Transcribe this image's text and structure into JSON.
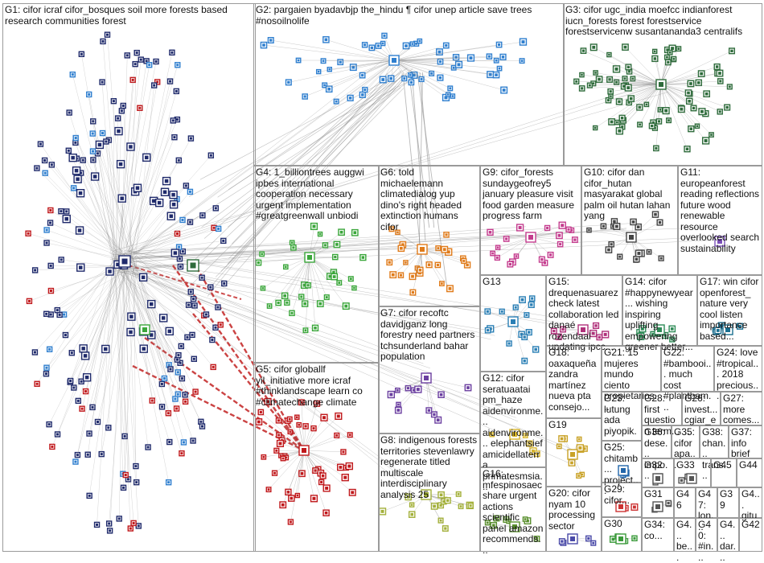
{
  "groups": [
    {
      "id": "G1",
      "text": "G1: cifor icraf cifor_bosques soil more forests based research communities forest",
      "color": "#1f2a6b"
    },
    {
      "id": "G2",
      "text": "G2: pargaien byadavbjp the_hindu ¶ cifor unep article save trees #nosoilnolife",
      "color": "#2f7fcf"
    },
    {
      "id": "G3",
      "text": "G3: cifor ugc_india moefcc indianforest iucn_forests forest forestservice forestservicenw susantananda3 centralifs",
      "color": "#2e6b3b"
    },
    {
      "id": "G4",
      "text": "G4: 1_billiontrees auggwi ipbes international cooperation necessary urgent implementation #greatgreenwall unbiodi",
      "color": "#3aa63a"
    },
    {
      "id": "G5",
      "text": "G5: cifor globallf yil_initiative more icraf #thinklandscape learn co #climatechange climate",
      "color": "#c0181b"
    },
    {
      "id": "G6",
      "text": "G6: told michaelemann climatedialog yup dino's right headed extinction humans cifor",
      "color": "#e07b1a"
    },
    {
      "id": "G7",
      "text": "G7: cifor recoftc davidjganz long forestry need partners tchsunderland bahar population",
      "color": "#6b3fa0"
    },
    {
      "id": "G8",
      "text": "G8: indigenous forests territories stevenlawry regenerate titled multiscale interdisciplinary analysis 25",
      "color": "#a3b03a"
    },
    {
      "id": "G9",
      "text": "G9: cifor_forests sundaygeofrey5 january pleasure visit food garden measure progress farm",
      "color": "#c43c8e"
    },
    {
      "id": "G10",
      "text": "G10: cifor dan cifor_hutan masyarakat global palm oil hutan lahan yang",
      "color": "#444444"
    },
    {
      "id": "G11",
      "text": "G11: europeanforest reading reflections future wood renewable resource overlooked search sustainability",
      "color": "#7a4fb8"
    },
    {
      "id": "G12",
      "text": "G12: cifor seratuaatai pm_haze aidenvironme... aidenvironme... elephantsief amicidellaterra primatesmsia...",
      "color": "#d8b52a"
    },
    {
      "id": "G13",
      "text": "G13",
      "color": "#2a7fb5"
    },
    {
      "id": "G14",
      "text": "G14: cifor #happynewyear... wishing inspiring uplifting empowering greener better...",
      "color": "#2e8b57"
    },
    {
      "id": "G15",
      "text": "G15: drequenasuarez check latest collaboration led danaé rozendaal updating ipcc...",
      "color": "#b0307a"
    },
    {
      "id": "G16",
      "text": "G16: mfespinosaec share urgent actions scientific panel amazon recommends...",
      "color": "#5a8f2e"
    },
    {
      "id": "G17",
      "text": "G17: win cifor openforest_ nature very cool listen importance based...",
      "color": "#1a6e8f"
    },
    {
      "id": "G18",
      "text": "G18: oaxaqueña zandra martínez nueva pta consejo...",
      "color": "#8f5a1a"
    },
    {
      "id": "G19",
      "text": "G19",
      "color": "#c9a227"
    },
    {
      "id": "G20",
      "text": "G20: cifor nyam 10 processing sector",
      "color": "#4a4aa8"
    },
    {
      "id": "G21",
      "text": "G21: 15 mujeres mundo ciento propietarios...",
      "color": "#888888"
    },
    {
      "id": "G22",
      "text": "G22: #bambooi... much cost #plantbam...",
      "color": "#3f7f3f"
    },
    {
      "id": "G23",
      "text": "G23: lutung ada piyopik...",
      "color": "#6f6f6f"
    },
    {
      "id": "G24",
      "text": "G24: love #tropical... 2018 precious...",
      "color": "#aa4444"
    },
    {
      "id": "G25",
      "text": "G25: chitamb... project...",
      "color": "#2266aa"
    },
    {
      "id": "G26",
      "text": "G26: invest... cgiar_e...",
      "color": "#666666"
    },
    {
      "id": "G27",
      "text": "G27: more comes...",
      "color": "#666666"
    },
    {
      "id": "G28",
      "text": "G28: first question term...",
      "color": "#666666"
    },
    {
      "id": "G29",
      "text": "G29: cifor...",
      "color": "#cc3333"
    },
    {
      "id": "G30",
      "text": "G30",
      "color": "#3a9a3a"
    },
    {
      "id": "G31",
      "text": "G31",
      "color": "#555555"
    },
    {
      "id": "G32",
      "text": "G32",
      "color": "#555555"
    },
    {
      "id": "G33",
      "text": "G33",
      "color": "#555555"
    },
    {
      "id": "G34",
      "text": "G34: co...",
      "color": "#555555"
    },
    {
      "id": "G35",
      "text": "G35: cifor apa...",
      "color": "#555555"
    },
    {
      "id": "G36",
      "text": "G36: dese... impo...",
      "color": "#555555"
    },
    {
      "id": "G37",
      "text": "G37: info brief",
      "color": "#555555"
    },
    {
      "id": "G38",
      "text": "G38: chan... trans...",
      "color": "#555555"
    },
    {
      "id": "G39",
      "text": "G39",
      "color": "#555555"
    },
    {
      "id": "G40",
      "text": "G40: #in...",
      "color": "#555555"
    },
    {
      "id": "G41",
      "text": "G4... dar...",
      "color": "#555555"
    },
    {
      "id": "G42",
      "text": "G42",
      "color": "#555555"
    },
    {
      "id": "G43",
      "text": "G4... be...",
      "color": "#555555"
    },
    {
      "id": "G44",
      "text": "G44",
      "color": "#555555"
    },
    {
      "id": "G45",
      "text": "G45",
      "color": "#555555"
    },
    {
      "id": "G46",
      "text": "G46",
      "color": "#555555"
    },
    {
      "id": "G47",
      "text": "G47: lon...",
      "color": "#555555"
    },
    {
      "id": "G48",
      "text": "G4... gitu",
      "color": "#555555"
    }
  ],
  "colors": {
    "edge": "#8a8a8a",
    "hub_edge": "#c22222",
    "border": "#9a9a9a",
    "background": "#ffffff"
  }
}
